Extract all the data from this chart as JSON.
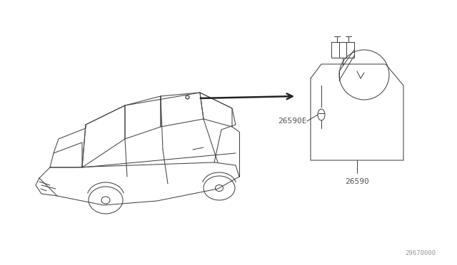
{
  "background_color": "#ffffff",
  "part_label_1": "26590E",
  "part_label_2": "26590",
  "watermark": "29670000",
  "line_color": "#444444",
  "text_color": "#555555"
}
